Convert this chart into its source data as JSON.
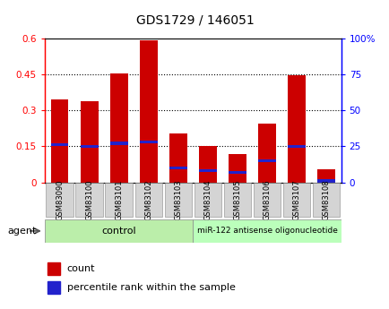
{
  "title": "GDS1729 / 146051",
  "categories": [
    "GSM83090",
    "GSM83100",
    "GSM83101",
    "GSM83102",
    "GSM83103",
    "GSM83104",
    "GSM83105",
    "GSM83106",
    "GSM83107",
    "GSM83108"
  ],
  "count_values": [
    0.345,
    0.34,
    0.455,
    0.593,
    0.205,
    0.153,
    0.118,
    0.245,
    0.447,
    0.055
  ],
  "percentile_positions": [
    0.157,
    0.15,
    0.162,
    0.168,
    0.06,
    0.048,
    0.042,
    0.09,
    0.15,
    0.006
  ],
  "ylim_left": [
    0,
    0.6
  ],
  "ylim_right": [
    0,
    100
  ],
  "yticks_left": [
    0,
    0.15,
    0.3,
    0.45,
    0.6
  ],
  "yticks_right": [
    0,
    25,
    50,
    75,
    100
  ],
  "ytick_labels_left": [
    "0",
    "0.15",
    "0.3",
    "0.45",
    "0.6"
  ],
  "ytick_labels_right": [
    "0",
    "25",
    "50",
    "75",
    "100%"
  ],
  "bar_color": "#cc0000",
  "percentile_color": "#2222cc",
  "control_label": "control",
  "treatment_label": "miR-122 antisense oligonucleotide",
  "agent_label": "agent",
  "legend_count": "count",
  "legend_percentile": "percentile rank within the sample",
  "control_color": "#bbeeaa",
  "treatment_color": "#bbffbb",
  "bar_width": 0.6,
  "blue_bar_height": 0.013
}
